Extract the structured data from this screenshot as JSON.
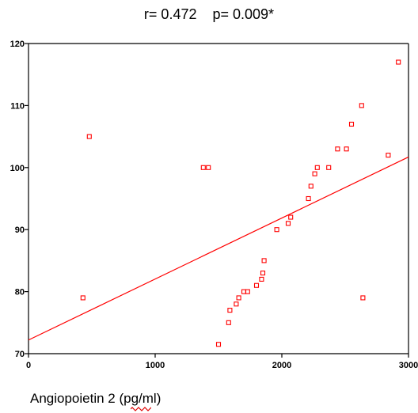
{
  "chart_data": {
    "type": "scatter",
    "title": "r= 0.472    p= 0.009*",
    "xlabel": "Angiopoietin 2 (pg/ml)",
    "ylabel": "",
    "xlim": [
      0,
      3000
    ],
    "ylim": [
      70,
      120
    ],
    "xticks": [
      "0",
      "1000",
      "2000",
      "3000"
    ],
    "yticks": [
      "70",
      "80",
      "90",
      "100",
      "110",
      "120"
    ],
    "grid": false,
    "legend": "none",
    "point_color": "#ff0000",
    "line_color": "#ff0000",
    "regression_line": {
      "x": [
        0,
        3000
      ],
      "y": [
        72.2,
        101.7
      ]
    },
    "points": [
      {
        "x": 430,
        "y": 79
      },
      {
        "x": 480,
        "y": 105
      },
      {
        "x": 1380,
        "y": 100
      },
      {
        "x": 1420,
        "y": 100
      },
      {
        "x": 1500,
        "y": 71.5
      },
      {
        "x": 1580,
        "y": 75
      },
      {
        "x": 1590,
        "y": 77
      },
      {
        "x": 1640,
        "y": 78
      },
      {
        "x": 1660,
        "y": 79
      },
      {
        "x": 1700,
        "y": 80
      },
      {
        "x": 1730,
        "y": 80
      },
      {
        "x": 1800,
        "y": 81
      },
      {
        "x": 1840,
        "y": 82
      },
      {
        "x": 1850,
        "y": 83
      },
      {
        "x": 1860,
        "y": 85
      },
      {
        "x": 1960,
        "y": 90
      },
      {
        "x": 2050,
        "y": 91
      },
      {
        "x": 2070,
        "y": 92
      },
      {
        "x": 2210,
        "y": 95
      },
      {
        "x": 2230,
        "y": 97
      },
      {
        "x": 2260,
        "y": 99
      },
      {
        "x": 2280,
        "y": 100
      },
      {
        "x": 2370,
        "y": 100
      },
      {
        "x": 2440,
        "y": 103
      },
      {
        "x": 2510,
        "y": 103
      },
      {
        "x": 2550,
        "y": 107
      },
      {
        "x": 2630,
        "y": 110
      },
      {
        "x": 2640,
        "y": 79
      },
      {
        "x": 2840,
        "y": 102
      },
      {
        "x": 2920,
        "y": 117
      }
    ]
  }
}
